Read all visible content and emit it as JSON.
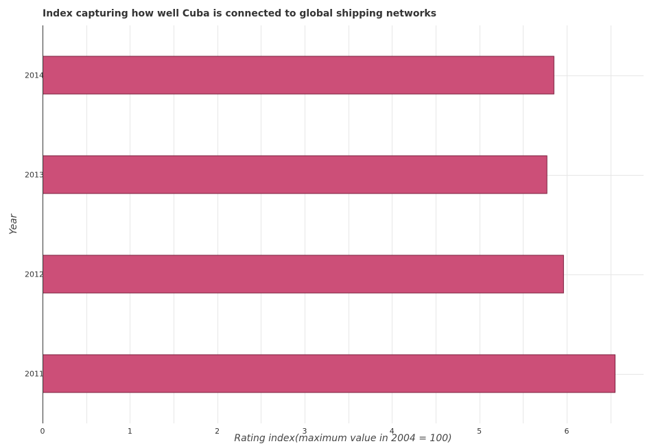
{
  "chart_data": {
    "type": "bar",
    "orientation": "horizontal",
    "title": "Index capturing how well Cuba is connected to global shipping networks",
    "xlabel": "Rating index(maximum value in 2004 = 100)",
    "ylabel": "Year",
    "categories": [
      "2011",
      "2012",
      "2013",
      "2014"
    ],
    "values": [
      6.55,
      5.96,
      5.77,
      5.85
    ],
    "xlim": [
      0,
      6.88
    ],
    "xticks": [
      0,
      1,
      2,
      3,
      4,
      5,
      6
    ],
    "grid": true,
    "legend": "none",
    "bar_color": "#cc4f78",
    "bar_edge_color": "#7a1f3d"
  }
}
